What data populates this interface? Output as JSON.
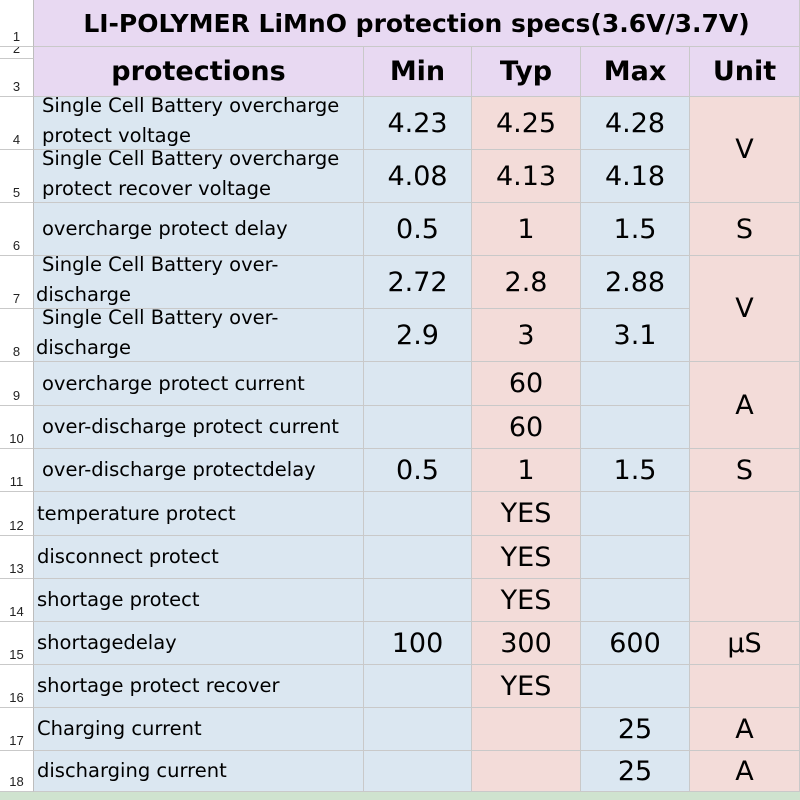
{
  "title": "LI-POLYMER LiMnO protection specs(3.6V/3.7V)",
  "row_numbers": [
    "1",
    "2",
    "3",
    "4",
    "5",
    "6",
    "7",
    "8",
    "9",
    "10",
    "11",
    "12",
    "13",
    "14",
    "15",
    "16",
    "17",
    "18"
  ],
  "headers": {
    "protection": "protections",
    "min": "Min",
    "typ": "Typ",
    "max": "Max",
    "unit": "Unit"
  },
  "rows": [
    {
      "label": [
        "Single Cell Battery overcharge",
        "protect voltage"
      ],
      "min": "4.23",
      "typ": "4.25",
      "max": "4.28"
    },
    {
      "label": [
        "Single Cell Battery overcharge",
        "protect recover voltage"
      ],
      "min": "4.08",
      "typ": "4.13",
      "max": "4.18"
    },
    {
      "label": [
        "overcharge protect delay"
      ],
      "min": "0.5",
      "typ": "1",
      "max": "1.5"
    },
    {
      "label": [
        "Single Cell Battery over-",
        "discharge"
      ],
      "min": "2.72",
      "typ": "2.8",
      "max": "2.88"
    },
    {
      "label": [
        "Single Cell Battery over-",
        "discharge"
      ],
      "min": "2.9",
      "typ": "3",
      "max": "3.1"
    },
    {
      "label": [
        "overcharge protect current"
      ],
      "min": "",
      "typ": "60",
      "max": ""
    },
    {
      "label": [
        "over-discharge protect current"
      ],
      "min": "",
      "typ": "60",
      "max": ""
    },
    {
      "label": [
        "over-discharge protectdelay"
      ],
      "min": "0.5",
      "typ": "1",
      "max": "1.5"
    },
    {
      "label": [
        "temperature protect"
      ],
      "min": "",
      "typ": "YES",
      "max": ""
    },
    {
      "label": [
        "disconnect protect"
      ],
      "min": "",
      "typ": "YES",
      "max": ""
    },
    {
      "label": [
        "shortage protect"
      ],
      "min": "",
      "typ": "YES",
      "max": ""
    },
    {
      "label": [
        "shortagedelay"
      ],
      "min": "100",
      "typ": "300",
      "max": "600"
    },
    {
      "label": [
        "shortage protect recover"
      ],
      "min": "",
      "typ": "YES",
      "max": ""
    },
    {
      "label": [
        "Charging current"
      ],
      "min": "",
      "typ": "",
      "max": "25"
    },
    {
      "label": [
        "discharging current"
      ],
      "min": "",
      "typ": "",
      "max": "25"
    }
  ],
  "units": [
    "V",
    "S",
    "V",
    "A",
    "S",
    "",
    "µS",
    "A",
    "A"
  ],
  "colors": {
    "title_bg": "#e8d9f2",
    "min_max_bg": "#dbe7f1",
    "typ_unit_bg": "#f3dcd9"
  }
}
